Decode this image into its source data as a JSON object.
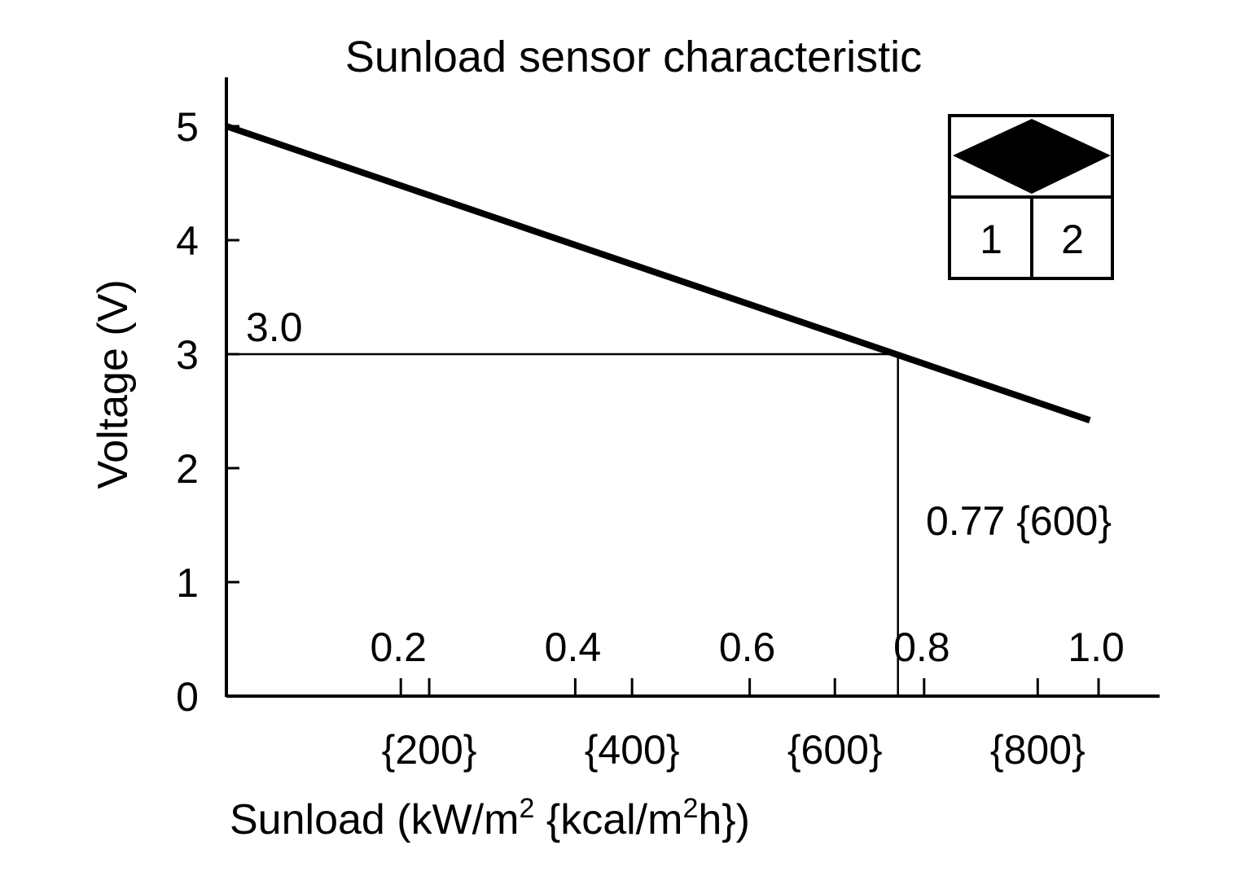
{
  "chart_data": {
    "type": "line",
    "title": "Sunload sensor characteristic",
    "xlabel": "Sunload (kW/m² {kcal/m²h})",
    "xlabel_parts": {
      "a": "Sunload (kW/m",
      "sup1": "2",
      "b": " {kcal/m",
      "sup2": "2",
      "c": "h})"
    },
    "ylabel": "Voltage (V)",
    "xlim": [
      0,
      1.07
    ],
    "ylim": [
      0,
      5
    ],
    "x_ticks": [
      {
        "value": 0.2,
        "label": "0.2"
      },
      {
        "value": 0.4,
        "label": "0.4"
      },
      {
        "value": 0.6,
        "label": "0.6"
      },
      {
        "value": 0.8,
        "label": "0.8"
      },
      {
        "value": 1.0,
        "label": "1.0"
      }
    ],
    "x_secondary_ticks": [
      {
        "value": 200,
        "label": "{200}"
      },
      {
        "value": 400,
        "label": "{400}"
      },
      {
        "value": 600,
        "label": "{600}"
      },
      {
        "value": 800,
        "label": "{800}"
      }
    ],
    "y_ticks": [
      {
        "value": 0,
        "label": "0"
      },
      {
        "value": 1,
        "label": "1"
      },
      {
        "value": 2,
        "label": "2"
      },
      {
        "value": 3,
        "label": "3"
      },
      {
        "value": 4,
        "label": "4"
      },
      {
        "value": 5,
        "label": "5"
      }
    ],
    "series": [
      {
        "x": [
          0,
          0.99
        ],
        "y": [
          5.0,
          2.42
        ]
      }
    ],
    "reference_point": {
      "x": 0.77,
      "y": 3.0
    },
    "annotations": {
      "y_value": "3.0",
      "x_value": "0.77 {600}"
    },
    "grid": false
  },
  "connector": {
    "pins": [
      "1",
      "2"
    ]
  }
}
